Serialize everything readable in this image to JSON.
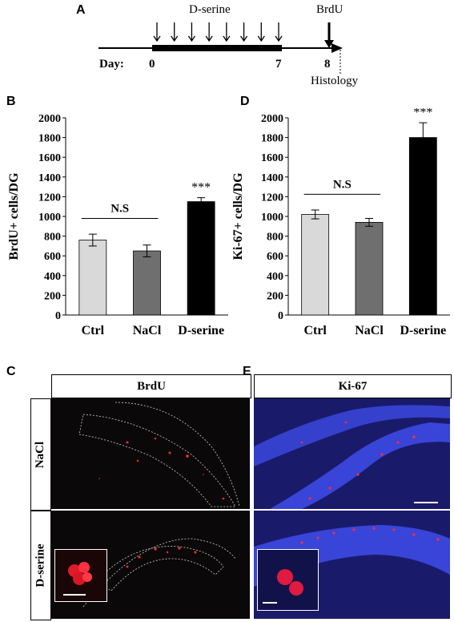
{
  "panels": {
    "a": "A",
    "b": "B",
    "c": "C",
    "d": "D",
    "e": "E"
  },
  "timeline": {
    "top_treatment": "D-serine",
    "top_label": "BrdU",
    "day_label": "Day:",
    "day0": "0",
    "day7": "7",
    "day8": "8",
    "end_label": "Histology"
  },
  "colors": {
    "ctrl": "#d9d9d9",
    "nacl": "#6f6f6f",
    "dserine": "#000000",
    "dapi": "#3845d8",
    "signal": "#ff2a3c"
  },
  "chart_data": [
    {
      "type": "bar",
      "ylabel": "BrdU+ cells/DG",
      "categories": [
        "Ctrl",
        "NaCl",
        "D-serine"
      ],
      "values": [
        760,
        650,
        1150
      ],
      "errors": [
        60,
        60,
        40
      ],
      "ylim": [
        0,
        2000
      ],
      "yticks": [
        "0",
        "200",
        "400",
        "600",
        "800",
        "1000",
        "1200",
        "1400",
        "1600",
        "1800",
        "2000"
      ],
      "comparison_label": "N.S",
      "significance": "***"
    },
    {
      "type": "bar",
      "ylabel": "Ki-67+ cells/DG",
      "categories": [
        "Ctrl",
        "NaCl",
        "D-serine"
      ],
      "values": [
        1020,
        940,
        1800
      ],
      "errors": [
        45,
        40,
        150
      ],
      "ylim": [
        0,
        2000
      ],
      "yticks": [
        "0",
        "200",
        "400",
        "600",
        "800",
        "1000",
        "1200",
        "1400",
        "1600",
        "1800",
        "2000"
      ],
      "comparison_label": "N.S",
      "significance": "***"
    }
  ],
  "micrographs": {
    "col_brdu": "BrdU",
    "col_ki67": "Ki-67",
    "row_nacl": "NaCl",
    "row_dserine": "D-serine"
  }
}
